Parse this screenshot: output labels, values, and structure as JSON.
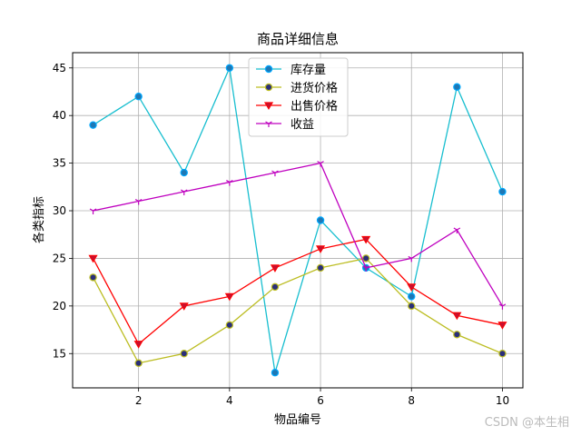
{
  "chart_data": {
    "type": "line",
    "title": "商品详细信息",
    "xlabel": "物品编号",
    "ylabel": "各类指标",
    "x": [
      1,
      2,
      3,
      4,
      5,
      6,
      7,
      8,
      9,
      10
    ],
    "xlim": [
      0.55,
      10.45
    ],
    "ylim": [
      11.4,
      46.6
    ],
    "xticks": [
      2,
      4,
      6,
      8,
      10
    ],
    "yticks": [
      15,
      20,
      25,
      30,
      35,
      40,
      45
    ],
    "grid": true,
    "legend_position": "top-center",
    "series": [
      {
        "name": "库存量",
        "values": [
          39,
          42,
          34,
          45,
          13,
          29,
          24,
          21,
          43,
          32
        ],
        "color": "#17becf",
        "marker": "circle",
        "marker_face": "#1f77b4",
        "marker_edge": "#00a8ff"
      },
      {
        "name": "进货价格",
        "values": [
          23,
          14,
          15,
          18,
          22,
          24,
          25,
          20,
          17,
          15
        ],
        "color": "#bcbd22",
        "marker": "circle",
        "marker_face": "#2b2f7a",
        "marker_edge": "#bcbd22"
      },
      {
        "name": "出售价格",
        "values": [
          25,
          16,
          20,
          21,
          24,
          26,
          27,
          22,
          19,
          18
        ],
        "color": "#ff0000",
        "marker": "triangle-down",
        "marker_face": "#c8102e",
        "marker_edge": "#ff0000"
      },
      {
        "name": "收益",
        "values": [
          30,
          31,
          32,
          33,
          34,
          35,
          24,
          25,
          28,
          20
        ],
        "color": "#bf00bf",
        "marker": "tri-down",
        "marker_face": "#bf00bf",
        "marker_edge": "#bf00bf"
      }
    ]
  },
  "watermark": "CSDN @本生相"
}
